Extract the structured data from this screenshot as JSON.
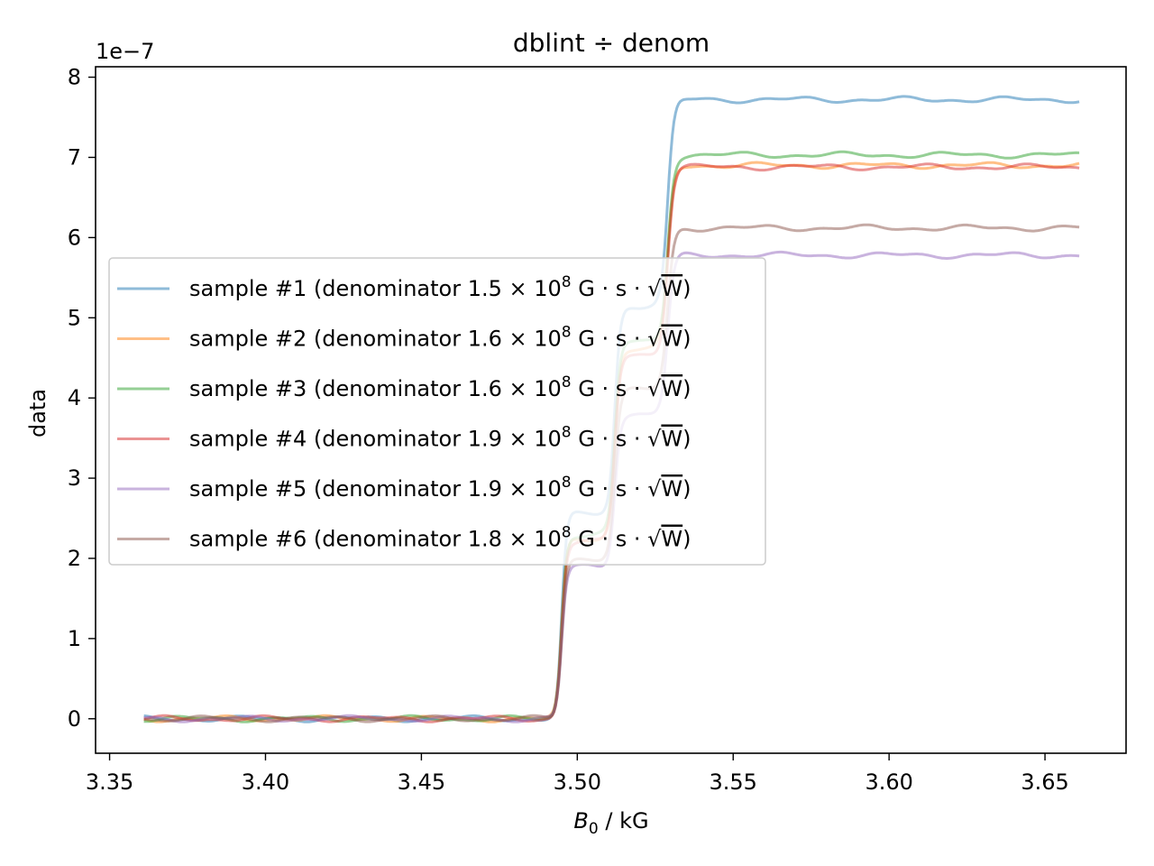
{
  "chart_data": {
    "type": "line",
    "title": "dblint ÷ denom",
    "xlabel_main": "B",
    "xlabel_sub": "0",
    "xlabel_rest": " / kG",
    "ylabel": "data",
    "y_multiplier": "1e−7",
    "xlim": [
      3.3455,
      3.676
    ],
    "ylim": [
      -0.43,
      8.13
    ],
    "x_ticks": [
      3.35,
      3.4,
      3.45,
      3.5,
      3.55,
      3.6,
      3.65
    ],
    "x_tick_labels": [
      "3.35",
      "3.40",
      "3.45",
      "3.50",
      "3.55",
      "3.60",
      "3.65"
    ],
    "y_ticks": [
      0,
      1,
      2,
      3,
      4,
      5,
      6,
      7,
      8
    ],
    "y_tick_labels": [
      "0",
      "1",
      "2",
      "3",
      "4",
      "5",
      "6",
      "7",
      "8"
    ],
    "x_range": [
      3.361,
      3.661
    ],
    "step_centers": [
      3.495,
      3.512,
      3.529
    ],
    "legend_position": "center-left",
    "grid": false,
    "series": [
      {
        "name": "sample #1 (denominator 1.5 × 10⁸ G · s · √W)",
        "label_value": "1.5",
        "color": "#1f77b4",
        "plateaus": [
          0,
          2.55,
          5.15,
          7.72
        ]
      },
      {
        "name": "sample #2 (denominator 1.6 × 10⁸ G · s · √W)",
        "label_value": "1.6",
        "color": "#ff7f0e",
        "plateaus": [
          0,
          2.25,
          4.6,
          6.9
        ]
      },
      {
        "name": "sample #3 (denominator 1.6 × 10⁸ G · s · √W)",
        "label_value": "1.6",
        "color": "#2ca02c",
        "plateaus": [
          0,
          2.3,
          4.7,
          7.03
        ]
      },
      {
        "name": "sample #4 (denominator 1.9 × 10⁸ G · s · √W)",
        "label_value": "1.9",
        "color": "#d62728",
        "plateaus": [
          0,
          2.2,
          4.55,
          6.88
        ]
      },
      {
        "name": "sample #5 (denominator 1.9 × 10⁸ G · s · √W)",
        "label_value": "1.9",
        "color": "#9467bd",
        "plateaus": [
          0,
          1.9,
          3.8,
          5.78
        ]
      },
      {
        "name": "sample #6 (denominator 1.8 × 10⁸ G · s · √W)",
        "label_value": "1.8",
        "color": "#8c564b",
        "plateaus": [
          0,
          2.0,
          4.1,
          6.12
        ]
      }
    ],
    "legend_text": {
      "prefix": "sample #",
      "middle": " (denominator ",
      "times": "×",
      "ten": "10",
      "exp": "8",
      "units": " G · s · ",
      "sqrt": "√",
      "w": "W",
      "close": ")"
    }
  }
}
